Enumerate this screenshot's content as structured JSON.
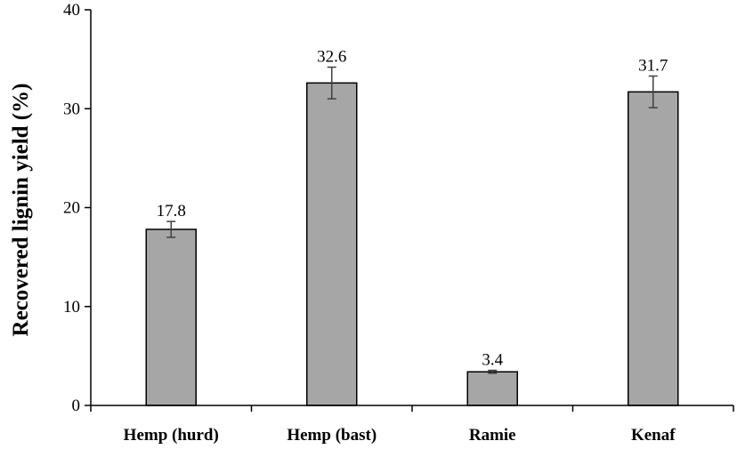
{
  "chart_data": {
    "type": "bar",
    "title": "",
    "xlabel": "",
    "ylabel": "Recovered lignin yield (%)",
    "categories": [
      "Hemp (hurd)",
      "Hemp (bast)",
      "Ramie",
      "Kenaf"
    ],
    "values": [
      17.8,
      32.6,
      3.4,
      31.7
    ],
    "data_labels": [
      "17.8",
      "32.6",
      "3.4",
      "31.7"
    ],
    "error": [
      0.8,
      1.6,
      0.15,
      1.6
    ],
    "ylim": [
      0,
      40
    ],
    "yticks": [
      0,
      10,
      20,
      30,
      40
    ],
    "ytick_labels": [
      "0",
      "10",
      "20",
      "30",
      "40"
    ],
    "grid": false,
    "legend": "none",
    "colors": {
      "bar_fill": "#a6a6a6",
      "bar_stroke": "#000000",
      "axis": "#000000",
      "error_bar": "#404040"
    }
  }
}
